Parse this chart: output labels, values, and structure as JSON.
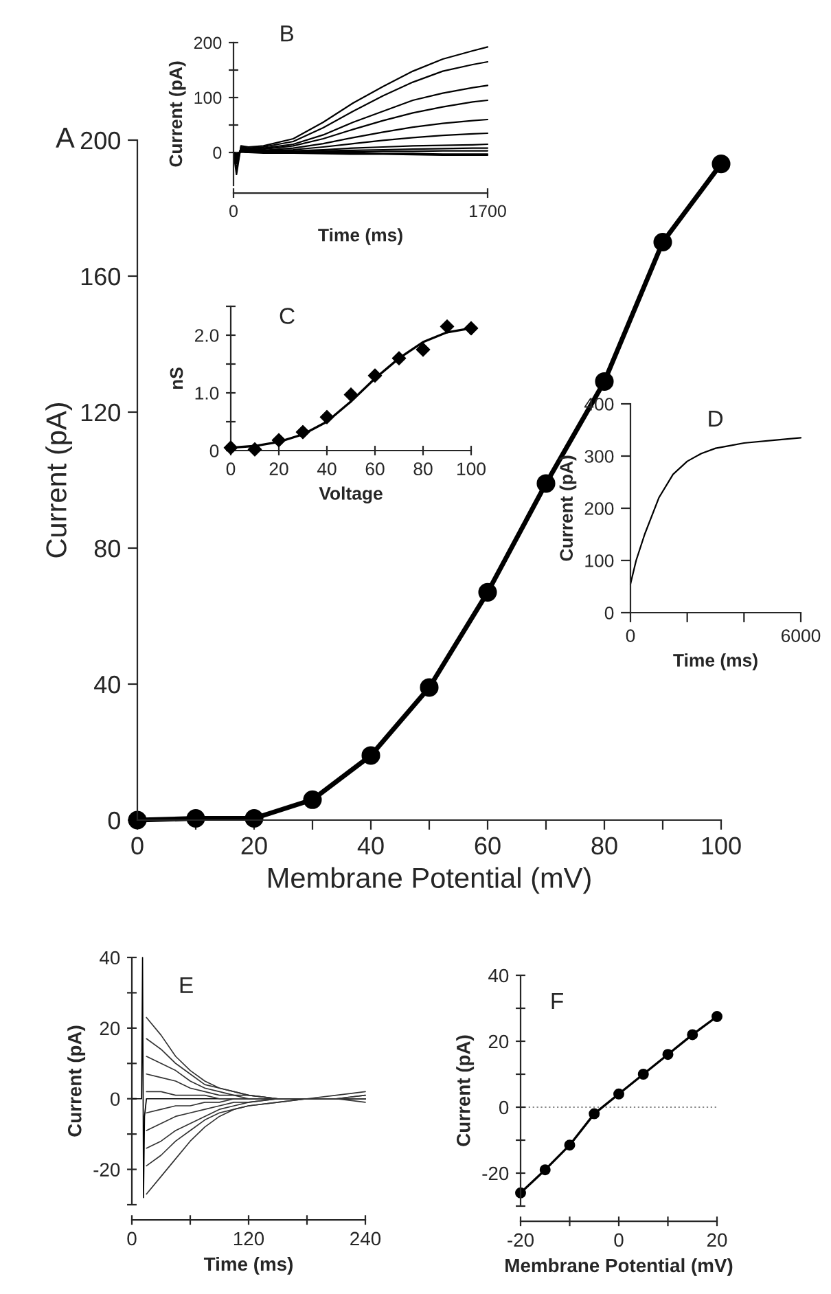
{
  "chart_data": [
    {
      "type": "line",
      "title": "A",
      "xlabel": "Membrane Potential (mV)",
      "ylabel": "Current (pA)",
      "marker": "circle",
      "x": [
        0,
        10,
        20,
        30,
        40,
        50,
        60,
        70,
        80,
        90,
        100
      ],
      "series": [
        {
          "color": "#000000",
          "values": [
            0,
            0.5,
            0.5,
            6,
            19,
            39,
            67,
            99,
            129,
            170,
            193
          ]
        }
      ],
      "xlim": [
        0,
        100
      ],
      "ylim": [
        0,
        200
      ],
      "xticks": [
        0,
        {
          "value": 10,
          "label": null
        },
        20,
        {
          "value": 30,
          "label": null
        },
        40,
        {
          "value": 50,
          "label": null
        },
        60,
        {
          "value": 70,
          "label": null
        },
        80,
        {
          "value": 90,
          "label": null
        },
        100
      ],
      "yticks": [
        0,
        40,
        80,
        120,
        160,
        200
      ]
    },
    {
      "type": "line",
      "title": "B",
      "xlabel": "Time (ms)",
      "ylabel": "Current (pA)",
      "x": [
        0,
        20,
        50,
        100,
        200,
        400,
        600,
        800,
        1000,
        1200,
        1400,
        1600,
        1700
      ],
      "series": [
        {
          "color": "#000000",
          "values": [
            0,
            -40,
            12,
            10,
            12,
            25,
            55,
            90,
            120,
            148,
            170,
            185,
            192
          ]
        },
        {
          "color": "#000000",
          "values": [
            0,
            -30,
            10,
            8,
            10,
            20,
            45,
            75,
            103,
            128,
            148,
            160,
            165
          ]
        },
        {
          "color": "#000000",
          "values": [
            0,
            -20,
            8,
            6,
            8,
            15,
            32,
            55,
            75,
            95,
            108,
            118,
            122
          ]
        },
        {
          "color": "#000000",
          "values": [
            0,
            -15,
            7,
            5,
            6,
            12,
            25,
            42,
            58,
            72,
            83,
            92,
            95
          ]
        },
        {
          "color": "#000000",
          "values": [
            0,
            -10,
            6,
            4,
            4,
            8,
            16,
            27,
            37,
            46,
            53,
            58,
            60
          ]
        },
        {
          "color": "#000000",
          "values": [
            0,
            -8,
            5,
            3,
            3,
            5,
            10,
            16,
            22,
            27,
            31,
            34,
            35
          ]
        },
        {
          "color": "#000000",
          "values": [
            0,
            -6,
            4,
            2,
            2,
            3,
            5,
            8,
            10,
            12,
            13,
            14,
            15
          ]
        },
        {
          "color": "#000000",
          "values": [
            0,
            -5,
            3,
            1,
            1,
            2,
            3,
            4,
            5,
            6,
            7,
            8,
            8
          ]
        },
        {
          "color": "#000000",
          "values": [
            0,
            -4,
            2,
            0,
            0,
            0,
            1,
            1,
            2,
            2,
            3,
            3,
            3
          ]
        },
        {
          "color": "#000000",
          "values": [
            0,
            -3,
            1,
            0,
            0,
            0,
            -1,
            -1,
            -2,
            -2,
            -3,
            -3,
            -3
          ]
        },
        {
          "color": "#000000",
          "values": [
            0,
            -3,
            1,
            0,
            -1,
            -1,
            -2,
            -3,
            -3,
            -4,
            -5,
            -5,
            -5
          ]
        }
      ],
      "xlim": [
        0,
        1700
      ],
      "ylim": [
        -60,
        200
      ],
      "xticks": [
        0,
        1700
      ],
      "yticks": [
        0,
        {
          "value": 50,
          "label": null
        },
        100,
        {
          "value": 150,
          "label": null
        },
        200
      ]
    },
    {
      "type": "scatter",
      "title": "C",
      "xlabel": "Voltage",
      "ylabel": "nS",
      "marker": "diamond",
      "x": [
        0,
        10,
        20,
        30,
        40,
        50,
        60,
        70,
        80,
        90,
        100
      ],
      "series": [
        {
          "color": "#000000",
          "values": [
            0.05,
            0.02,
            0.18,
            0.32,
            0.58,
            0.97,
            1.3,
            1.6,
            1.75,
            2.15,
            2.12
          ]
        },
        {
          "type": "line",
          "marker": "none",
          "color": "#000000",
          "values": [
            0.05,
            0.08,
            0.15,
            0.28,
            0.5,
            0.85,
            1.25,
            1.6,
            1.88,
            2.05,
            2.12
          ]
        }
      ],
      "xlim": [
        0,
        100
      ],
      "ylim": [
        0,
        2.5
      ],
      "xticks": [
        0,
        20,
        40,
        60,
        80,
        100
      ],
      "yticks": [
        0,
        {
          "value": 0.5,
          "label": null
        },
        {
          "value": 1,
          "label": "1.0"
        },
        {
          "value": 1.5,
          "label": null
        },
        {
          "value": 2,
          "label": "2.0"
        },
        {
          "value": 2.5,
          "label": null
        }
      ]
    },
    {
      "type": "line",
      "title": "D",
      "xlabel": "Time (ms)",
      "ylabel": "Current (pA)",
      "x": [
        0,
        200,
        500,
        1000,
        1500,
        2000,
        2500,
        3000,
        3500,
        4000,
        5000,
        6000
      ],
      "series": [
        {
          "color": "#000000",
          "values": [
            55,
            100,
            150,
            220,
            265,
            290,
            305,
            315,
            320,
            325,
            330,
            335
          ]
        }
      ],
      "xlim": [
        0,
        6000
      ],
      "ylim": [
        0,
        400
      ],
      "xticks": [
        0,
        {
          "value": 2000,
          "label": null
        },
        {
          "value": 4000,
          "label": null
        },
        6000
      ],
      "yticks": [
        0,
        100,
        200,
        300,
        400
      ]
    },
    {
      "type": "line",
      "title": "E",
      "xlabel": "Time (ms)",
      "ylabel": "Current (pA)",
      "x": [
        15,
        30,
        45,
        60,
        75,
        90,
        105,
        120,
        150,
        180,
        210,
        240
      ],
      "series": [
        {
          "color": "#000000",
          "x": [
            0,
            10,
            11,
            12,
            13,
            15,
            240
          ],
          "values": [
            0,
            0,
            40,
            -28,
            -5,
            0,
            0
          ]
        },
        {
          "color": "#333333",
          "values": [
            23,
            18,
            12,
            8,
            5,
            3,
            2,
            1,
            0,
            0,
            1,
            2
          ]
        },
        {
          "color": "#333333",
          "values": [
            17,
            14,
            10,
            7,
            4,
            3,
            2,
            1,
            0,
            0,
            0,
            1
          ]
        },
        {
          "color": "#333333",
          "values": [
            12,
            10,
            8,
            5,
            3,
            2,
            1,
            1,
            0,
            0,
            0,
            1
          ]
        },
        {
          "color": "#333333",
          "values": [
            7,
            6,
            5,
            3,
            2,
            1,
            1,
            0,
            0,
            0,
            0,
            0
          ]
        },
        {
          "color": "#333333",
          "values": [
            2,
            2,
            1,
            1,
            1,
            0,
            0,
            0,
            0,
            0,
            0,
            0
          ]
        },
        {
          "color": "#333333",
          "values": [
            -4,
            -3,
            -2,
            -2,
            -1,
            -1,
            0,
            0,
            0,
            0,
            0,
            0
          ]
        },
        {
          "color": "#333333",
          "values": [
            -9,
            -7,
            -5,
            -4,
            -3,
            -2,
            -1,
            -1,
            0,
            0,
            0,
            0
          ]
        },
        {
          "color": "#333333",
          "values": [
            -14,
            -12,
            -9,
            -7,
            -5,
            -3,
            -2,
            -1,
            0,
            0,
            0,
            0
          ]
        },
        {
          "color": "#333333",
          "values": [
            -19,
            -16,
            -12,
            -9,
            -6,
            -4,
            -3,
            -2,
            -1,
            0,
            0,
            0
          ]
        },
        {
          "color": "#333333",
          "values": [
            -27,
            -22,
            -17,
            -12,
            -8,
            -5,
            -3,
            -2,
            -1,
            0,
            0,
            -1
          ]
        }
      ],
      "xlim": [
        0,
        240
      ],
      "ylim": [
        -30,
        40
      ],
      "xticks": [
        0,
        {
          "value": 60,
          "label": null
        },
        120,
        {
          "value": 180,
          "label": null
        },
        240
      ],
      "yticks": [
        {
          "value": -30,
          "label": null
        },
        -20,
        {
          "value": -10,
          "label": null
        },
        0,
        {
          "value": 10,
          "label": null
        },
        20,
        {
          "value": 30,
          "label": null
        },
        40
      ]
    },
    {
      "type": "line",
      "title": "F",
      "xlabel": "Membrane Potential (mV)",
      "ylabel": "Current (pA)",
      "marker": "circle",
      "x": [
        -20,
        -15,
        -10,
        -5,
        0,
        5,
        10,
        15,
        20
      ],
      "series": [
        {
          "color": "#000000",
          "values": [
            -26,
            -19,
            -11.5,
            -2,
            4,
            10,
            16,
            22,
            27.5
          ]
        }
      ],
      "ref_lines": [
        {
          "axis": "y",
          "value": 0,
          "color": "#888888",
          "line_style": "dotted"
        }
      ],
      "xlim": [
        -20,
        20
      ],
      "ylim": [
        -30,
        40
      ],
      "xticks": [
        -20,
        {
          "value": -10,
          "label": null
        },
        0,
        {
          "value": 10,
          "label": null
        },
        20
      ],
      "yticks": [
        {
          "value": -30,
          "label": null
        },
        -20,
        {
          "value": -10,
          "label": null
        },
        0,
        {
          "value": 10,
          "label": null
        },
        20,
        {
          "value": 30,
          "label": null
        },
        40
      ]
    }
  ]
}
